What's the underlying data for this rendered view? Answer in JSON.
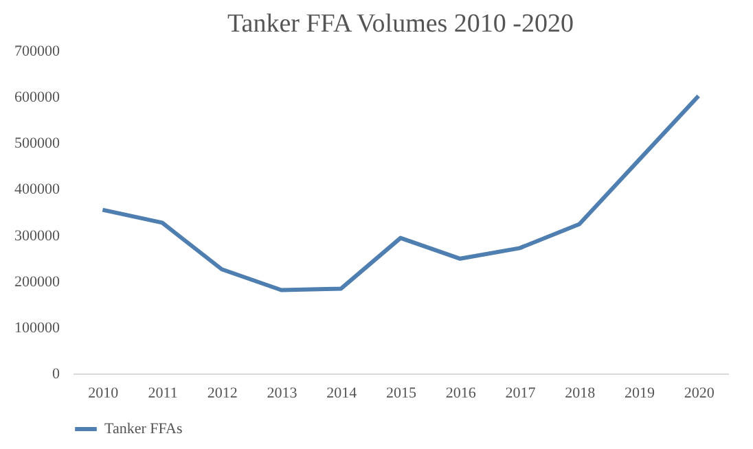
{
  "chart_data": {
    "type": "line",
    "title": "Tanker FFA Volumes 2010 -2020",
    "categories": [
      "2010",
      "2011",
      "2012",
      "2013",
      "2014",
      "2015",
      "2016",
      "2017",
      "2018",
      "2019",
      "2020"
    ],
    "series": [
      {
        "name": "Tanker FFAs",
        "color": "#4f7eb0",
        "values": [
          355000,
          327000,
          226000,
          181000,
          184000,
          294000,
          249000,
          272000,
          324000,
          463000,
          602000
        ]
      }
    ],
    "ylim": [
      0,
      700000
    ],
    "yticks": [
      0,
      100000,
      200000,
      300000,
      400000,
      500000,
      600000,
      700000
    ],
    "grid": false,
    "legend": "bottom",
    "marker": "none",
    "line_style": "solid"
  }
}
